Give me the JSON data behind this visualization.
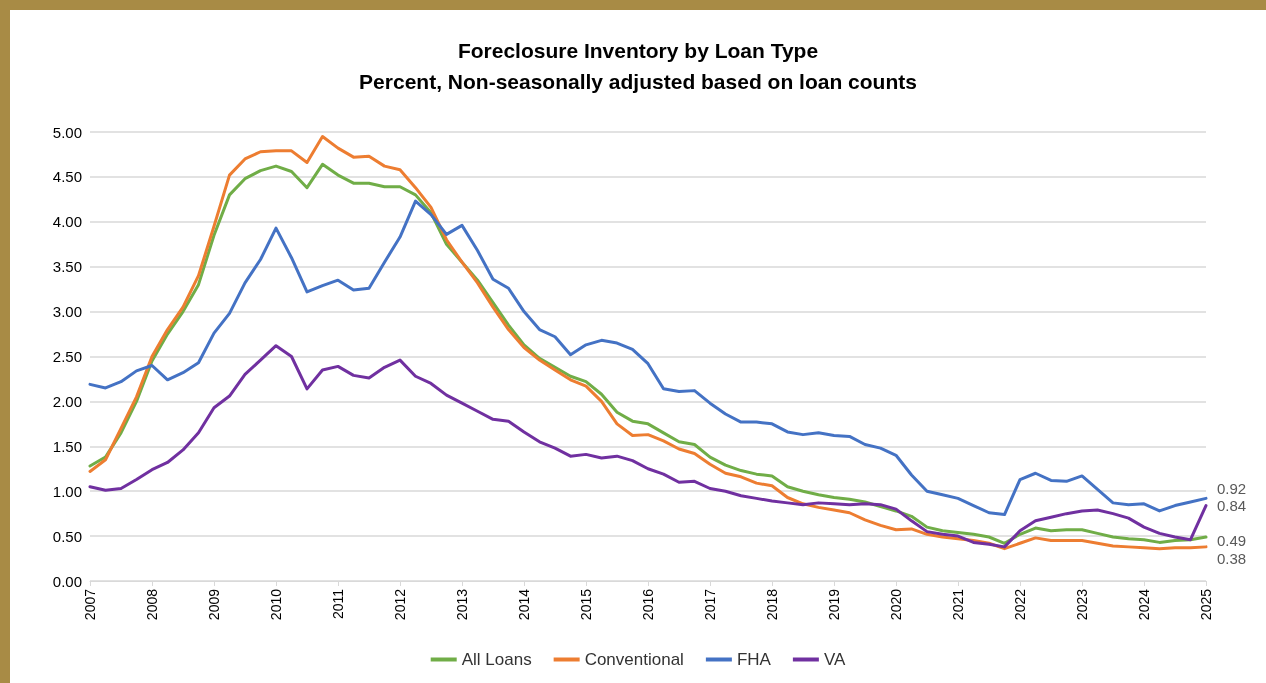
{
  "chart_data": {
    "type": "line",
    "title": "Foreclosure Inventory by Loan Type",
    "subtitle": "Percent, Non-seasonally adjusted based on loan counts",
    "x": [
      2007,
      2007.25,
      2007.5,
      2007.75,
      2008,
      2008.25,
      2008.5,
      2008.75,
      2009,
      2009.25,
      2009.5,
      2009.75,
      2010,
      2010.25,
      2010.5,
      2010.75,
      2011,
      2011.25,
      2011.5,
      2011.75,
      2012,
      2012.25,
      2012.5,
      2012.75,
      2013,
      2013.25,
      2013.5,
      2013.75,
      2014,
      2014.25,
      2014.5,
      2014.75,
      2015,
      2015.25,
      2015.5,
      2015.75,
      2016,
      2016.25,
      2016.5,
      2016.75,
      2017,
      2017.25,
      2017.5,
      2017.75,
      2018,
      2018.25,
      2018.5,
      2018.75,
      2019,
      2019.25,
      2019.5,
      2019.75,
      2020,
      2020.25,
      2020.5,
      2020.75,
      2021,
      2021.25,
      2021.5,
      2021.75,
      2022,
      2022.25,
      2022.5,
      2022.75,
      2023,
      2023.25,
      2023.5,
      2023.75,
      2024,
      2024.25,
      2024.5,
      2024.75,
      2025
    ],
    "series": [
      {
        "name": "All Loans",
        "color": "#70ad47",
        "values": [
          1.28,
          1.38,
          1.65,
          2.0,
          2.45,
          2.75,
          3.0,
          3.3,
          3.85,
          4.3,
          4.48,
          4.57,
          4.62,
          4.56,
          4.38,
          4.64,
          4.52,
          4.43,
          4.43,
          4.39,
          4.39,
          4.3,
          4.1,
          3.75,
          3.55,
          3.35,
          3.1,
          2.85,
          2.63,
          2.48,
          2.38,
          2.28,
          2.22,
          2.08,
          1.88,
          1.78,
          1.75,
          1.65,
          1.55,
          1.52,
          1.38,
          1.29,
          1.23,
          1.19,
          1.17,
          1.05,
          1.0,
          0.96,
          0.93,
          0.91,
          0.88,
          0.83,
          0.78,
          0.72,
          0.6,
          0.56,
          0.54,
          0.52,
          0.49,
          0.42,
          0.52,
          0.59,
          0.56,
          0.57,
          0.57,
          0.53,
          0.49,
          0.47,
          0.46,
          0.43,
          0.45,
          0.46,
          0.49
        ],
        "value_labels": [
          null,
          null,
          null,
          null,
          null,
          null,
          null,
          null,
          null,
          null,
          null,
          null,
          null,
          null,
          null,
          null,
          null,
          null,
          null,
          null,
          null,
          null,
          null,
          null,
          null,
          null,
          null,
          null,
          null,
          null,
          null,
          null,
          null,
          null,
          null,
          null,
          null,
          null,
          null,
          null,
          null,
          null,
          null,
          null,
          null,
          null,
          null,
          null,
          null,
          null,
          null,
          null,
          null,
          null,
          null,
          null,
          null,
          null,
          null,
          null,
          null,
          null,
          null,
          null,
          null,
          null,
          null,
          null,
          null,
          null,
          null,
          null,
          "0.49"
        ]
      },
      {
        "name": "Conventional",
        "color": "#ed7d31",
        "values": [
          1.22,
          1.35,
          1.7,
          2.05,
          2.5,
          2.8,
          3.05,
          3.4,
          3.95,
          4.52,
          4.7,
          4.78,
          4.79,
          4.79,
          4.66,
          4.95,
          4.82,
          4.72,
          4.73,
          4.62,
          4.58,
          4.38,
          4.16,
          3.8,
          3.55,
          3.32,
          3.05,
          2.8,
          2.6,
          2.46,
          2.35,
          2.24,
          2.17,
          2.0,
          1.75,
          1.62,
          1.63,
          1.56,
          1.47,
          1.42,
          1.3,
          1.2,
          1.16,
          1.09,
          1.06,
          0.93,
          0.86,
          0.82,
          0.79,
          0.76,
          0.68,
          0.62,
          0.57,
          0.58,
          0.52,
          0.49,
          0.47,
          0.45,
          0.42,
          0.36,
          0.42,
          0.48,
          0.45,
          0.45,
          0.45,
          0.42,
          0.39,
          0.38,
          0.37,
          0.36,
          0.37,
          0.37,
          0.38
        ],
        "value_labels": [
          null,
          null,
          null,
          null,
          null,
          null,
          null,
          null,
          null,
          null,
          null,
          null,
          null,
          null,
          null,
          null,
          null,
          null,
          null,
          null,
          null,
          null,
          null,
          null,
          null,
          null,
          null,
          null,
          null,
          null,
          null,
          null,
          null,
          null,
          null,
          null,
          null,
          null,
          null,
          null,
          null,
          null,
          null,
          null,
          null,
          null,
          null,
          null,
          null,
          null,
          null,
          null,
          null,
          null,
          null,
          null,
          null,
          null,
          null,
          null,
          null,
          null,
          null,
          null,
          null,
          null,
          null,
          null,
          null,
          null,
          null,
          null,
          "0.38"
        ]
      },
      {
        "name": "FHA",
        "color": "#4472c4",
        "values": [
          2.19,
          2.15,
          2.22,
          2.34,
          2.4,
          2.24,
          2.32,
          2.43,
          2.76,
          2.98,
          3.32,
          3.58,
          3.93,
          3.6,
          3.22,
          3.29,
          3.35,
          3.24,
          3.26,
          3.55,
          3.83,
          4.23,
          4.08,
          3.86,
          3.96,
          3.68,
          3.36,
          3.26,
          3.0,
          2.8,
          2.72,
          2.52,
          2.63,
          2.68,
          2.65,
          2.58,
          2.42,
          2.14,
          2.11,
          2.12,
          1.98,
          1.86,
          1.77,
          1.77,
          1.75,
          1.66,
          1.63,
          1.65,
          1.62,
          1.61,
          1.52,
          1.48,
          1.4,
          1.18,
          1.0,
          0.96,
          0.92,
          0.84,
          0.76,
          0.74,
          1.13,
          1.2,
          1.12,
          1.11,
          1.17,
          1.02,
          0.87,
          0.85,
          0.86,
          0.78,
          0.84,
          0.88,
          0.92
        ],
        "value_labels": [
          null,
          null,
          null,
          null,
          null,
          null,
          null,
          null,
          null,
          null,
          null,
          null,
          null,
          null,
          null,
          null,
          null,
          null,
          null,
          null,
          null,
          null,
          null,
          null,
          null,
          null,
          null,
          null,
          null,
          null,
          null,
          null,
          null,
          null,
          null,
          null,
          null,
          null,
          null,
          null,
          null,
          null,
          null,
          null,
          null,
          null,
          null,
          null,
          null,
          null,
          null,
          null,
          null,
          null,
          null,
          null,
          null,
          null,
          null,
          null,
          null,
          null,
          null,
          null,
          null,
          null,
          null,
          null,
          null,
          null,
          null,
          null,
          "0.92"
        ]
      },
      {
        "name": "VA",
        "color": "#7030a0",
        "values": [
          1.05,
          1.01,
          1.03,
          1.13,
          1.24,
          1.32,
          1.46,
          1.65,
          1.93,
          2.06,
          2.3,
          2.46,
          2.62,
          2.5,
          2.14,
          2.35,
          2.39,
          2.29,
          2.26,
          2.38,
          2.46,
          2.28,
          2.2,
          2.07,
          1.98,
          1.89,
          1.8,
          1.78,
          1.66,
          1.55,
          1.48,
          1.39,
          1.41,
          1.37,
          1.39,
          1.34,
          1.25,
          1.19,
          1.1,
          1.11,
          1.03,
          1.0,
          0.95,
          0.92,
          0.89,
          0.87,
          0.85,
          0.87,
          0.86,
          0.85,
          0.86,
          0.85,
          0.8,
          0.67,
          0.55,
          0.52,
          0.5,
          0.43,
          0.41,
          0.38,
          0.56,
          0.67,
          0.71,
          0.75,
          0.78,
          0.79,
          0.75,
          0.7,
          0.6,
          0.53,
          0.49,
          0.46,
          0.84
        ],
        "value_labels": [
          null,
          null,
          null,
          null,
          null,
          null,
          null,
          null,
          null,
          null,
          null,
          null,
          null,
          null,
          null,
          null,
          null,
          null,
          null,
          null,
          null,
          null,
          null,
          null,
          null,
          null,
          null,
          null,
          null,
          null,
          null,
          null,
          null,
          null,
          null,
          null,
          null,
          null,
          null,
          null,
          null,
          null,
          null,
          null,
          null,
          null,
          null,
          null,
          null,
          null,
          null,
          null,
          null,
          null,
          null,
          null,
          null,
          null,
          null,
          null,
          null,
          null,
          null,
          null,
          null,
          null,
          null,
          null,
          null,
          null,
          null,
          null,
          "0.84"
        ]
      }
    ],
    "xlim": [
      2007,
      2025
    ],
    "xticks": [
      2007,
      2008,
      2009,
      2010,
      2011,
      2012,
      2013,
      2014,
      2015,
      2016,
      2017,
      2018,
      2019,
      2020,
      2021,
      2022,
      2023,
      2024,
      2025
    ],
    "ylim": [
      0,
      5
    ],
    "yticks": [
      {
        "value": 0,
        "label": "0.00"
      },
      {
        "value": 0.5,
        "label": "0.50"
      },
      {
        "value": 1,
        "label": "1.00"
      },
      {
        "value": 1.5,
        "label": "1.50"
      },
      {
        "value": 2,
        "label": "2.00"
      },
      {
        "value": 2.5,
        "label": "2.50"
      },
      {
        "value": 3,
        "label": "3.00"
      },
      {
        "value": 3.5,
        "label": "3.50"
      },
      {
        "value": 4,
        "label": "4.00"
      },
      {
        "value": 4.5,
        "label": "4.50"
      },
      {
        "value": 5,
        "label": "5.00"
      }
    ],
    "grid": "y",
    "legend": "bottom",
    "marker": "none",
    "line_style": "solid"
  }
}
